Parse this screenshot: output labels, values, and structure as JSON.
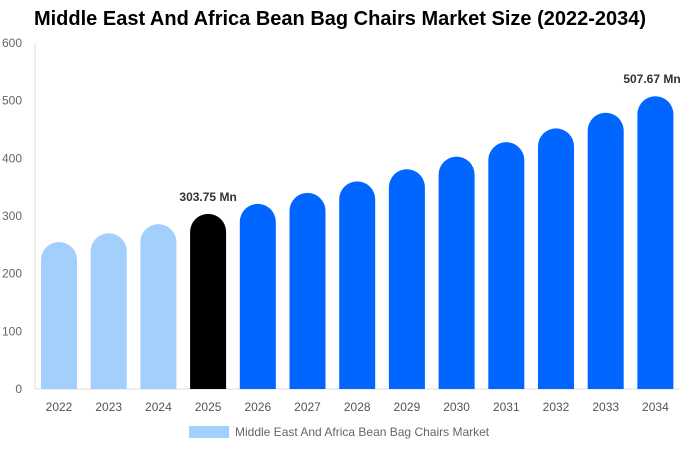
{
  "chart_data": {
    "type": "bar",
    "title": "Middle East And Africa Bean Bag Chairs Market Size (2022-2034)",
    "categories": [
      "2022",
      "2023",
      "2024",
      "2025",
      "2026",
      "2027",
      "2028",
      "2029",
      "2030",
      "2031",
      "2032",
      "2033",
      "2034"
    ],
    "series": [
      {
        "name": "Middle East And Africa Bean Bag Chairs Market",
        "values": [
          255,
          270,
          286,
          303.75,
          321,
          340,
          360,
          381,
          403,
          428,
          452,
          479,
          507.67
        ]
      }
    ],
    "data_labels": {
      "3": "303.75 Mn",
      "12": "507.67 Mn"
    },
    "ylim": [
      0,
      600
    ],
    "yticks": [
      0,
      100,
      200,
      300,
      400,
      500,
      600
    ],
    "grid": false,
    "legend": "bottom",
    "colors": {
      "historical": "#a3cffd",
      "current": "#000000",
      "forecast": "#0066ff"
    }
  }
}
